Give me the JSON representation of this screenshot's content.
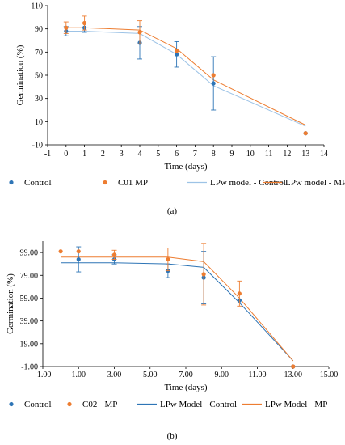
{
  "chart_data": [
    {
      "type": "scatter",
      "panel_label": "(a)",
      "xlabel": "Time (days)",
      "ylabel": "Germination (%)",
      "xlim": [
        -1,
        14
      ],
      "ylim": [
        -10,
        110
      ],
      "xticks": [
        -1,
        0,
        1,
        2,
        3,
        4,
        5,
        6,
        7,
        8,
        9,
        10,
        11,
        12,
        13,
        14
      ],
      "yticks": [
        -10,
        10,
        30,
        50,
        70,
        90,
        110
      ],
      "ytick_labels": [
        "-10",
        "10",
        "30",
        "50",
        "70",
        "90",
        "110"
      ],
      "xtick_labels": [
        "-1",
        "0",
        "1",
        "2",
        "3",
        "4",
        "5",
        "6",
        "7",
        "8",
        "9",
        "10",
        "11",
        "12",
        "13",
        "14"
      ],
      "grid": false,
      "legend_position": "bottom",
      "series": [
        {
          "name": "Control",
          "kind": "points",
          "color": "#2E75B6",
          "x": [
            0,
            1,
            4,
            6,
            8,
            13
          ],
          "y": [
            88,
            91,
            78,
            68,
            43,
            0
          ],
          "err": [
            4,
            4,
            14,
            11,
            23,
            0
          ]
        },
        {
          "name": "C01 MP",
          "kind": "points",
          "color": "#ED7D31",
          "x": [
            0,
            1,
            4,
            6,
            8,
            13
          ],
          "y": [
            91,
            95,
            87,
            71,
            50,
            0
          ],
          "err": [
            5,
            6,
            10,
            0,
            0,
            0
          ]
        },
        {
          "name": "LPw model - Control",
          "kind": "line",
          "color": "#9DC3E6",
          "x": [
            0,
            1,
            4,
            6,
            8,
            13
          ],
          "y": [
            88,
            88,
            86,
            68,
            41,
            6
          ]
        },
        {
          "name": "LPw model - MP",
          "kind": "line",
          "color": "#ED7D31",
          "x": [
            0,
            1,
            4,
            6,
            8,
            13
          ],
          "y": [
            91,
            91,
            89,
            73,
            46,
            7
          ]
        }
      ]
    },
    {
      "type": "scatter",
      "panel_label": "(b)",
      "xlabel": "Time (days)",
      "ylabel": "Germination (%)",
      "xlim": [
        -1,
        15
      ],
      "ylim": [
        -1,
        109
      ],
      "xticks": [
        -1,
        1,
        3,
        5,
        7,
        9,
        11,
        13,
        15
      ],
      "xtick_labels": [
        "-1.00",
        "1.00",
        "3.00",
        "5.00",
        "7.00",
        "9.00",
        "11.00",
        "13.00",
        "15.00"
      ],
      "yticks": [
        -1,
        19,
        39,
        59,
        79,
        99
      ],
      "ytick_labels": [
        "-1.00",
        "19.00",
        "39.00",
        "59.00",
        "79.00",
        "99.00"
      ],
      "grid": false,
      "legend_position": "bottom",
      "series": [
        {
          "name": "Control",
          "kind": "points",
          "color": "#2E75B6",
          "x": [
            1,
            3,
            6,
            8,
            10,
            13
          ],
          "y": [
            93,
            93,
            83,
            77,
            57,
            -1
          ],
          "err": [
            11,
            4,
            6,
            23,
            0,
            0
          ]
        },
        {
          "name": "C02 - MP",
          "kind": "points",
          "color": "#ED7D31",
          "x": [
            0,
            1,
            3,
            6,
            8,
            10,
            13
          ],
          "y": [
            100,
            100,
            97,
            93,
            80,
            63,
            -1
          ],
          "err": [
            0,
            0,
            4,
            10,
            27,
            11,
            0
          ]
        },
        {
          "name": "LPw Model - Control",
          "kind": "line",
          "color": "#2E75B6",
          "x": [
            0,
            1,
            3,
            6,
            8,
            10,
            13
          ],
          "y": [
            90,
            90,
            90,
            89,
            86,
            55,
            4
          ]
        },
        {
          "name": "LPw Model - MP",
          "kind": "line",
          "color": "#ED7D31",
          "x": [
            0,
            1,
            3,
            6,
            8,
            10,
            13
          ],
          "y": [
            95,
            95,
            95,
            95,
            91,
            59,
            4
          ]
        }
      ]
    }
  ]
}
